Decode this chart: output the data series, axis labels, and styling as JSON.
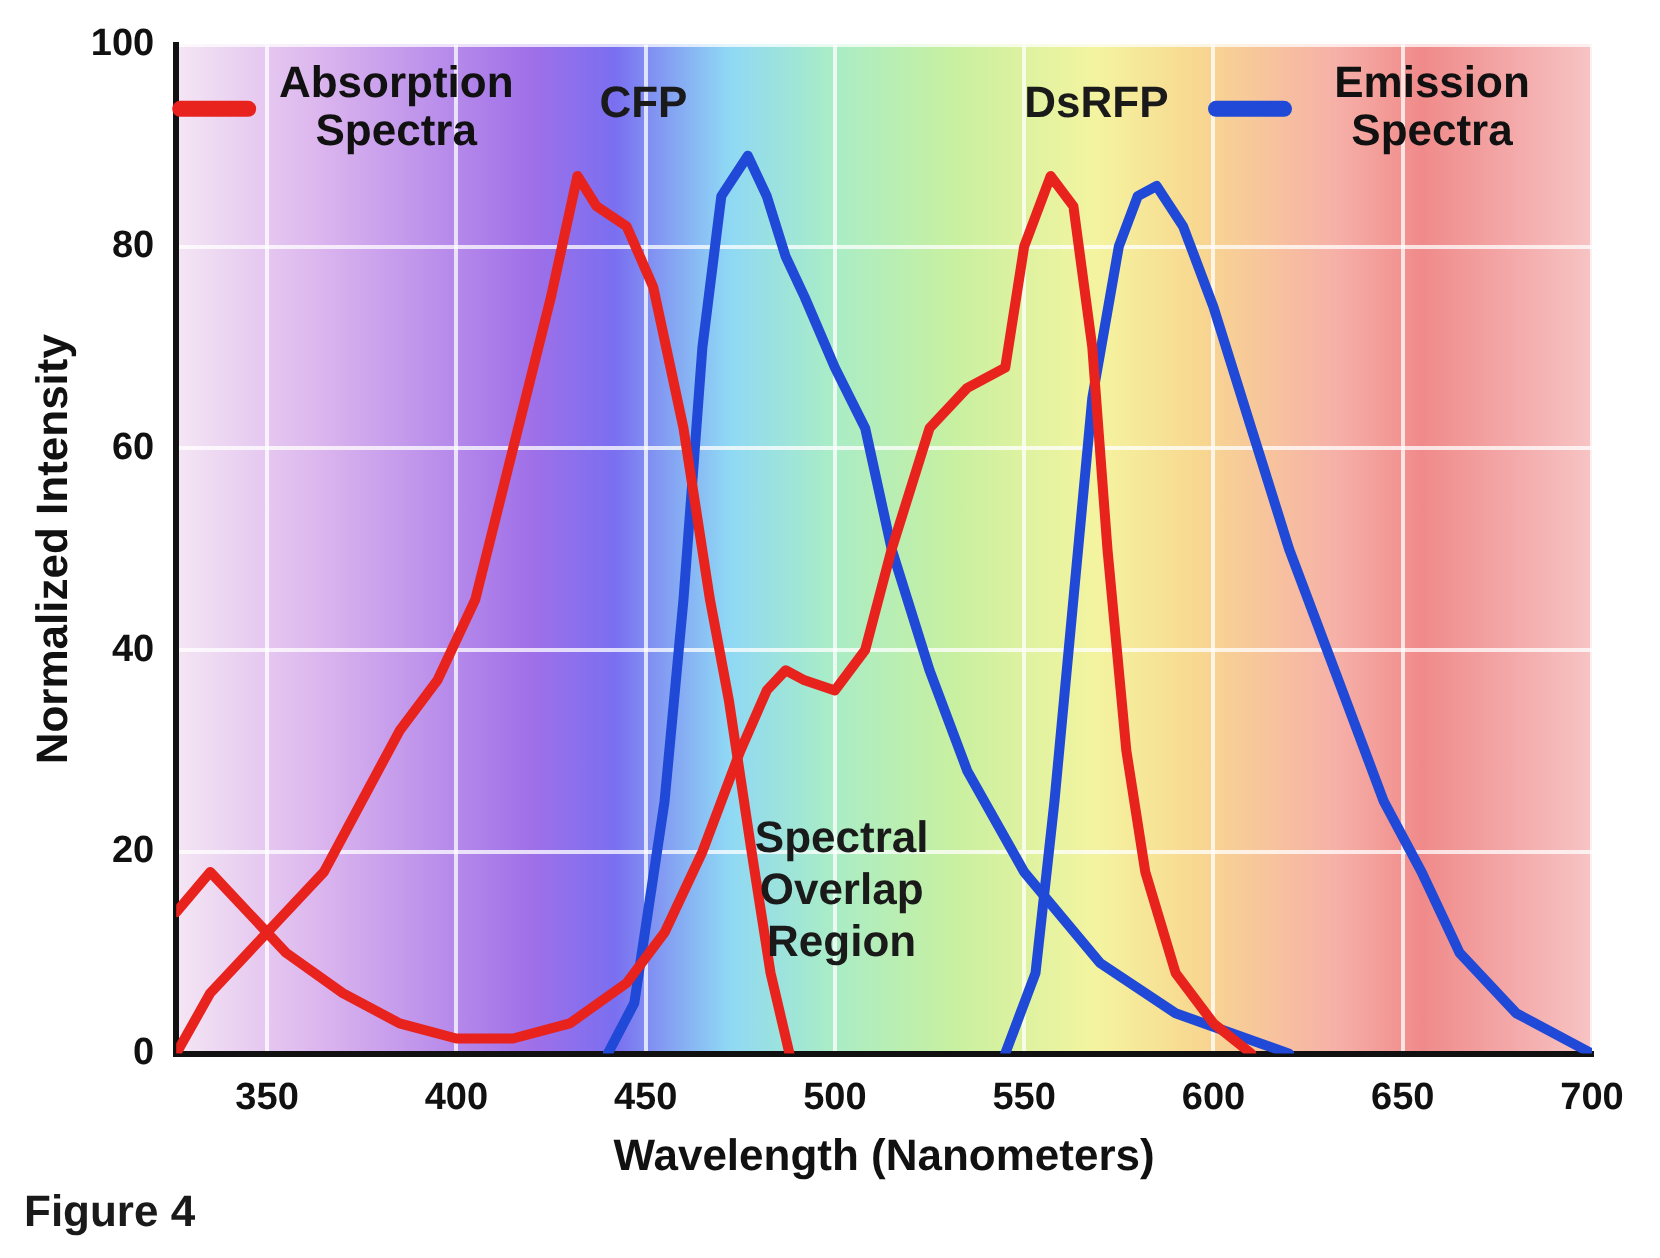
{
  "chart_data": {
    "type": "line",
    "xlabel": "Wavelength (Nanometers)",
    "ylabel": "Normalized Intensity",
    "xlim": [
      326,
      700
    ],
    "ylim": [
      0,
      100
    ],
    "xticks": [
      350,
      400,
      450,
      500,
      550,
      600,
      650,
      700
    ],
    "yticks": [
      0,
      20,
      40,
      60,
      80,
      100
    ],
    "grid": true,
    "legend": "top",
    "marker": "none",
    "line_style": "solid",
    "series": [
      {
        "name": "Absorption Spectra",
        "color": "#e8231e",
        "x": [
          326,
          335,
          350,
          365,
          375,
          385,
          395,
          405,
          415,
          425,
          432,
          437,
          445,
          452,
          460,
          467,
          472,
          478,
          483,
          488
        ],
        "values": [
          0,
          6,
          12,
          18,
          25,
          32,
          37,
          45,
          60,
          75,
          87,
          84,
          82,
          76,
          62,
          45,
          35,
          20,
          8,
          0
        ]
      },
      {
        "color": "#e8231e",
        "x": [
          326,
          335,
          345,
          355,
          370,
          385,
          400,
          415,
          430,
          445,
          455,
          465,
          475,
          482,
          487,
          492,
          500,
          508,
          515,
          525,
          535,
          545,
          550,
          557,
          563,
          568,
          572,
          577,
          582,
          590,
          600,
          610
        ],
        "values": [
          14,
          18,
          14,
          10,
          6,
          3,
          1.5,
          1.5,
          3,
          7,
          12,
          20,
          30,
          36,
          38,
          37,
          36,
          40,
          50,
          62,
          66,
          68,
          80,
          87,
          84,
          70,
          50,
          30,
          18,
          8,
          3,
          0
        ]
      },
      {
        "name": "Emission Spectra",
        "color": "#1f49d6",
        "x": [
          440,
          447,
          455,
          460,
          465,
          470,
          477,
          482,
          487,
          492,
          500,
          508,
          515,
          525,
          535,
          550,
          570,
          590,
          605,
          620
        ],
        "values": [
          0,
          5,
          25,
          45,
          70,
          85,
          89,
          85,
          79,
          75,
          68,
          62,
          50,
          38,
          28,
          18,
          9,
          4,
          2,
          0
        ]
      },
      {
        "color": "#1f49d6",
        "x": [
          545,
          553,
          558,
          563,
          568,
          575,
          580,
          585,
          592,
          600,
          610,
          620,
          630,
          638,
          645,
          655,
          665,
          680,
          700
        ],
        "values": [
          0,
          8,
          25,
          45,
          65,
          80,
          85,
          86,
          82,
          74,
          62,
          50,
          40,
          32,
          25,
          18,
          10,
          4,
          0
        ]
      }
    ],
    "annotations": [
      "CFP",
      "DsRFP",
      "Spectral Overlap Region",
      "Figure 4"
    ]
  }
}
